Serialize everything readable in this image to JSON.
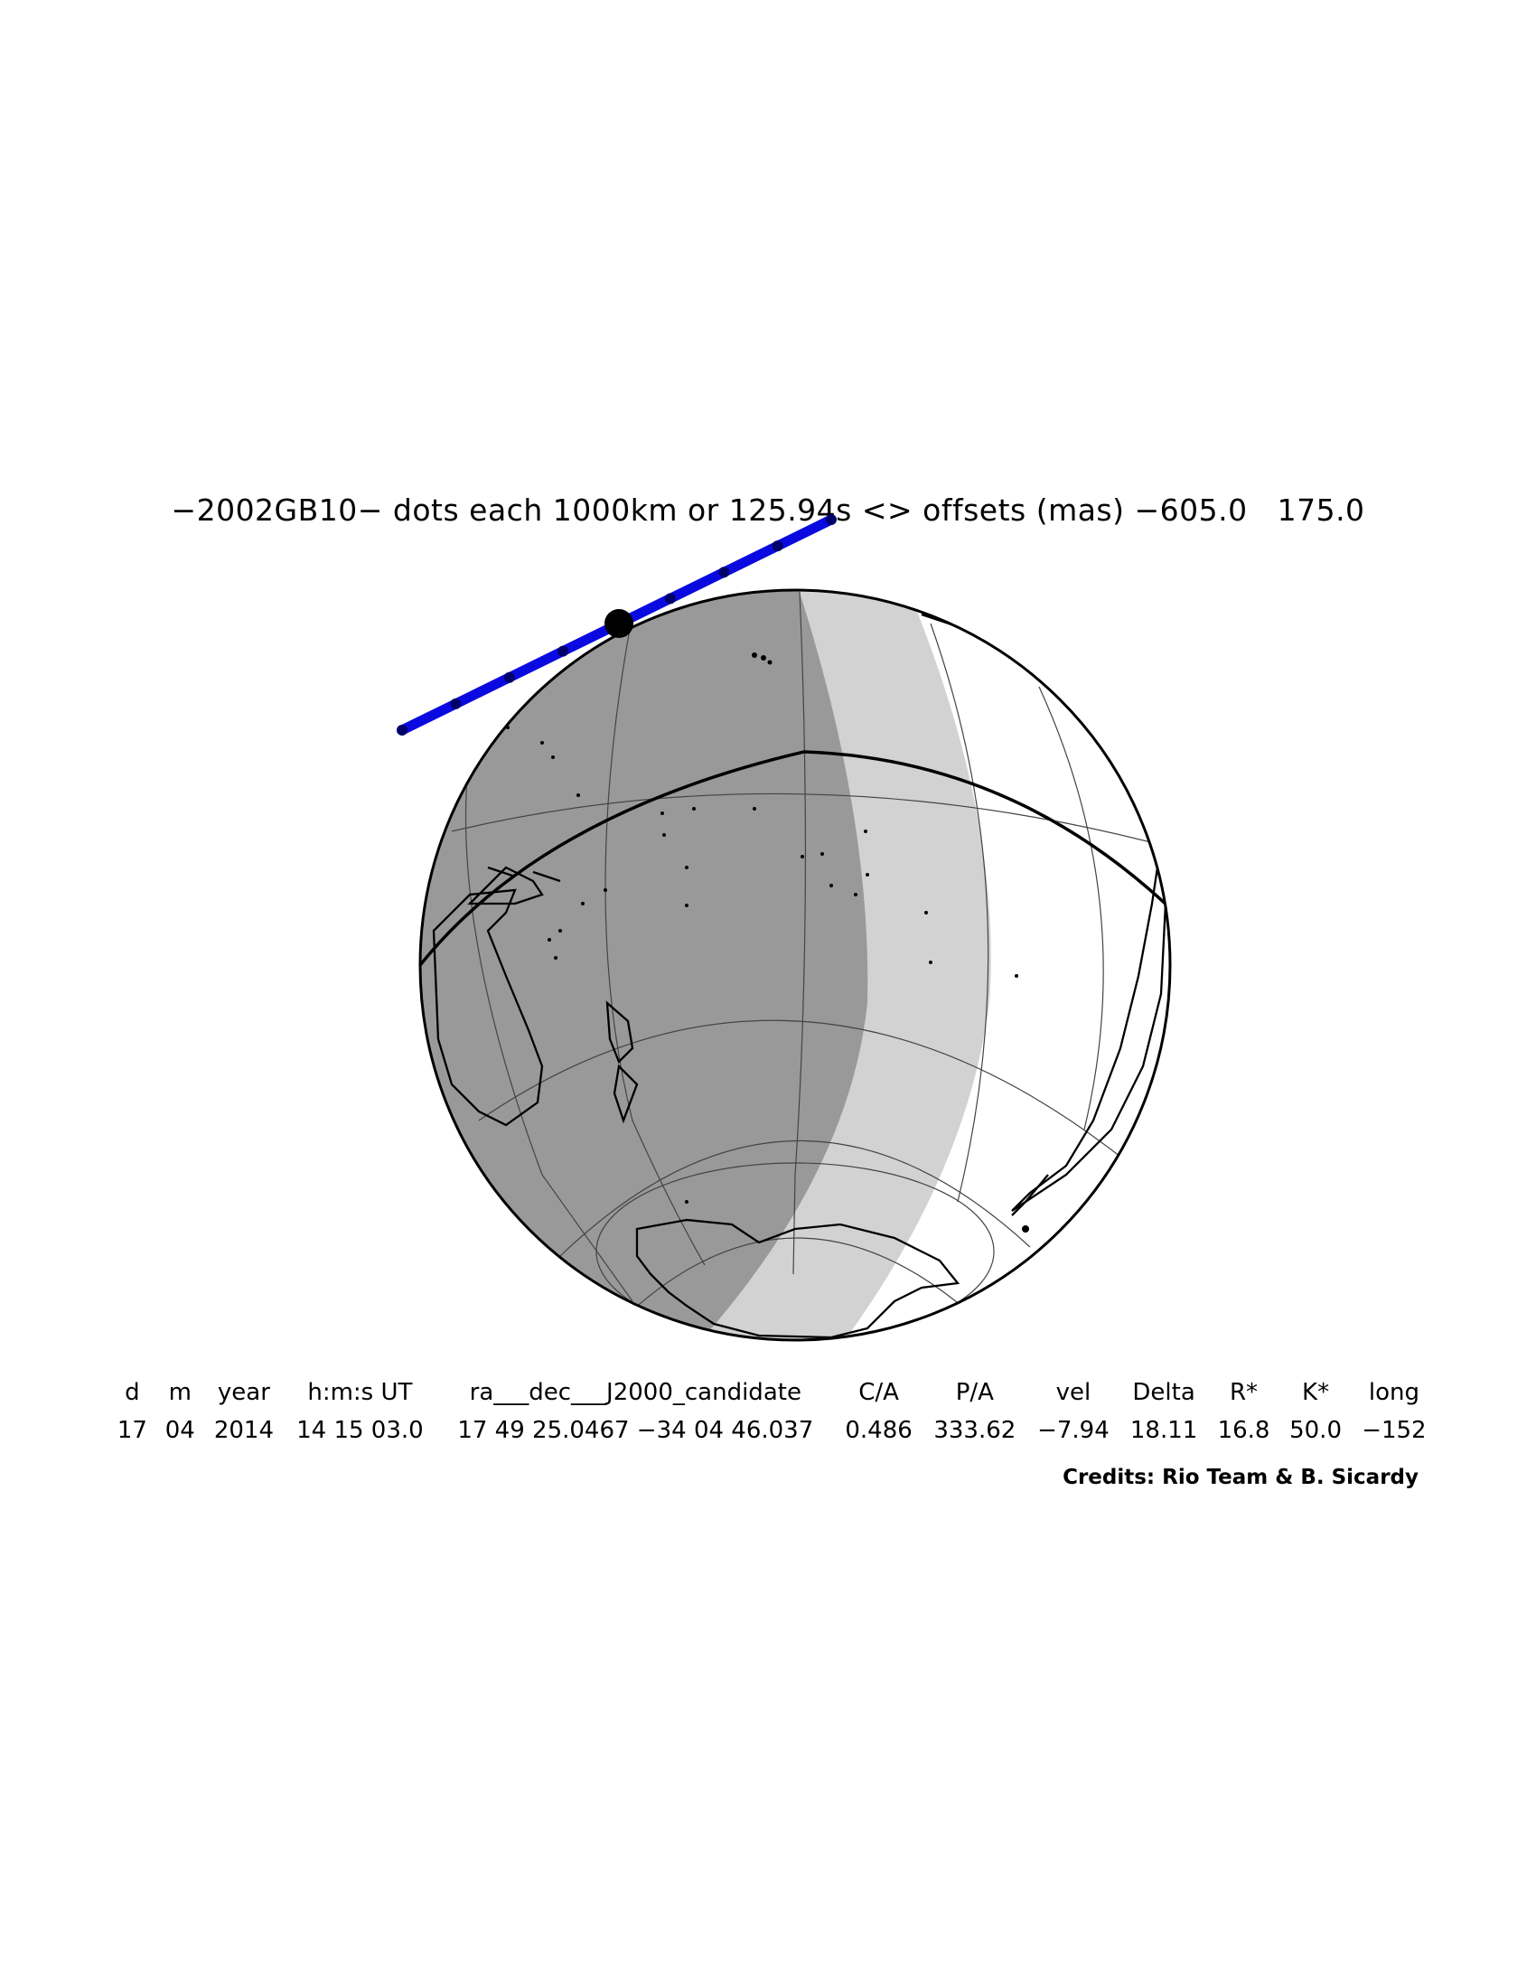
{
  "title": "−2002GB10− dots each 1000km or 125.94s <> offsets (mas) −605.0   175.0",
  "map": {
    "projection": "orthographic",
    "night_color": "#999999",
    "twilight_color": "#d2d2d2",
    "day_color": "#ffffff",
    "track_color": "#0a0ae0",
    "track_dot_count": 9,
    "closest_approach_marker": true
  },
  "table": {
    "headers": [
      "d",
      "m",
      "year",
      "h:m:s UT",
      "ra___dec___J2000_candidate",
      "C/A",
      "P/A",
      "vel",
      "Delta",
      "R*",
      "K*",
      "long"
    ],
    "values": [
      "17",
      "04",
      "2014",
      "14 15 03.0",
      "17 49 25.0467 −34 04 46.037",
      "0.486",
      "333.62",
      "−7.94",
      "18.11",
      "16.8",
      "50.0",
      "−152"
    ]
  },
  "credits": "Credits: Rio Team & B. Sicardy"
}
